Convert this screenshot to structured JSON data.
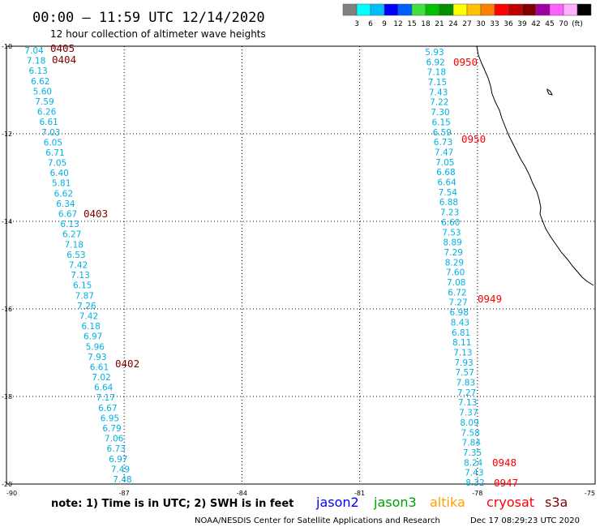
{
  "header": {
    "title": "00:00 – 11:59 UTC 12/14/2020",
    "subtitle": "12 hour collection of altimeter wave heights"
  },
  "colorbar": {
    "colors": [
      "#808080",
      "#00ffff",
      "#00bfff",
      "#0000ff",
      "#0060ff",
      "#40e040",
      "#00c000",
      "#009000",
      "#ffff00",
      "#ffc000",
      "#ff8000",
      "#ff0000",
      "#c00000",
      "#800000",
      "#a000a0",
      "#ff60ff",
      "#ffb0ff",
      "#000000"
    ],
    "labels": [
      "3",
      "6",
      "9",
      "12",
      "15",
      "18",
      "21",
      "24",
      "27",
      "30",
      "33",
      "36",
      "39",
      "42",
      "45",
      "70",
      "(ft)"
    ]
  },
  "axes": {
    "x_ticks": [
      "-90",
      "-87",
      "-84",
      "-81",
      "-78",
      "-75"
    ],
    "y_ticks": [
      "-10",
      "-12",
      "-14",
      "-16",
      "-18",
      "-20"
    ]
  },
  "value_color": "#00b0e0",
  "tracks": [
    {
      "values": [
        "7.04",
        "7.18",
        "6.13",
        "6.62",
        "5.60",
        "7.59",
        "6.26",
        "6.61",
        "7.03",
        "6.05",
        "6.71",
        "7.05",
        "6.40",
        "5.81",
        "6.62",
        "6.34",
        "6.67",
        "6.13",
        "6.27",
        "7.18",
        "6.53",
        "7.42",
        "7.13",
        "6.15",
        "7.87",
        "7.26",
        "7.42",
        "6.18",
        "6.97",
        "5.96",
        "7.93",
        "6.61",
        "7.02",
        "6.64",
        "7.17",
        "6.67",
        "6.95",
        "6.79",
        "7.06",
        "6.73",
        "6.97",
        "7.49",
        "7.48"
      ],
      "times": [
        {
          "text": "0405",
          "color": "#800000"
        },
        {
          "text": "0404",
          "color": "#800000"
        },
        {
          "text": "0403",
          "color": "#800000"
        },
        {
          "text": "0402",
          "color": "#800000"
        }
      ]
    },
    {
      "values": [
        "5.93",
        "6.92",
        "7.18",
        "7.15",
        "7.43",
        "7.22",
        "7.30",
        "6.15",
        "6.59",
        "6.73",
        "7.47",
        "7.05",
        "6.68",
        "6.64",
        "7.54",
        "6.88",
        "7.23",
        "6.60",
        "7.53",
        "8.89",
        "7.29",
        "8.29",
        "7.60",
        "7.08",
        "6.72",
        "7.27",
        "6.98",
        "8.43",
        "6.81",
        "8.11",
        "7.13",
        "7.93",
        "7.57",
        "7.83",
        "7.27",
        "7.13",
        "7.37",
        "8.09",
        "7.58",
        "7.84",
        "7.35",
        "8.24",
        "7.43",
        "8.32"
      ],
      "times": [
        {
          "text": "0950",
          "color": "#ff0000"
        },
        {
          "text": "0950",
          "color": "#ff0000"
        },
        {
          "text": "0949",
          "color": "#ff0000"
        },
        {
          "text": "0948",
          "color": "#ff0000"
        },
        {
          "text": "0947",
          "color": "#ff0000"
        }
      ]
    }
  ],
  "legend": {
    "note": "note: 1) Time is in UTC; 2) SWH is in feet",
    "satellites": [
      {
        "name": "jason2",
        "color": "#0000ff"
      },
      {
        "name": "jason3",
        "color": "#00a000"
      },
      {
        "name": "altika",
        "color": "#ffa000"
      },
      {
        "name": "cryosat",
        "color": "#ff0000"
      },
      {
        "name": "s3a",
        "color": "#800000"
      }
    ]
  },
  "footer": {
    "credit": "NOAA/NESDIS Center for Satellite Applications and Research",
    "timestamp": "Dec 17 08:29:23 UTC 2020"
  }
}
